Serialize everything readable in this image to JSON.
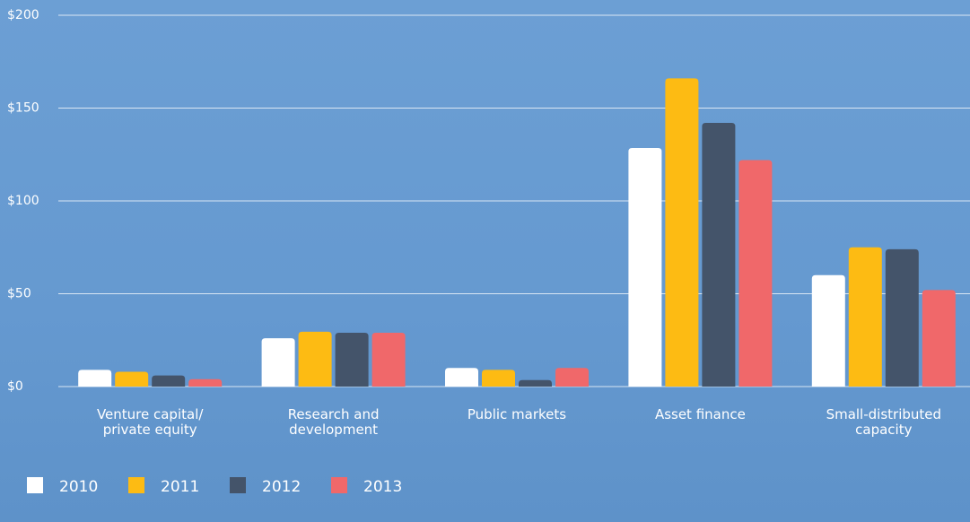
{
  "chart_data": {
    "type": "bar",
    "categories": [
      "Venture capital/\nprivate equity",
      "Research and\ndevelopment",
      "Public markets",
      "Asset finance",
      "Small-distributed\ncapacity"
    ],
    "series": [
      {
        "name": "2010",
        "color": "#ffffff",
        "values": [
          9,
          26,
          10,
          128.5,
          60
        ]
      },
      {
        "name": "2011",
        "color": "#fdbb13",
        "values": [
          8,
          29.5,
          9,
          166,
          75
        ]
      },
      {
        "name": "2012",
        "color": "#44546a",
        "values": [
          6,
          29,
          3.5,
          142,
          74
        ]
      },
      {
        "name": "2013",
        "color": "#f0686a",
        "values": [
          4,
          29,
          10,
          122,
          52
        ]
      }
    ],
    "ylim": [
      0,
      200
    ],
    "yticks": [
      {
        "value": 0,
        "label": "$0"
      },
      {
        "value": 50,
        "label": "$50"
      },
      {
        "value": 100,
        "label": "$100"
      },
      {
        "value": 150,
        "label": "$150"
      },
      {
        "value": 200,
        "label": "$200"
      }
    ],
    "grid": true,
    "legend": "bottom-left"
  }
}
